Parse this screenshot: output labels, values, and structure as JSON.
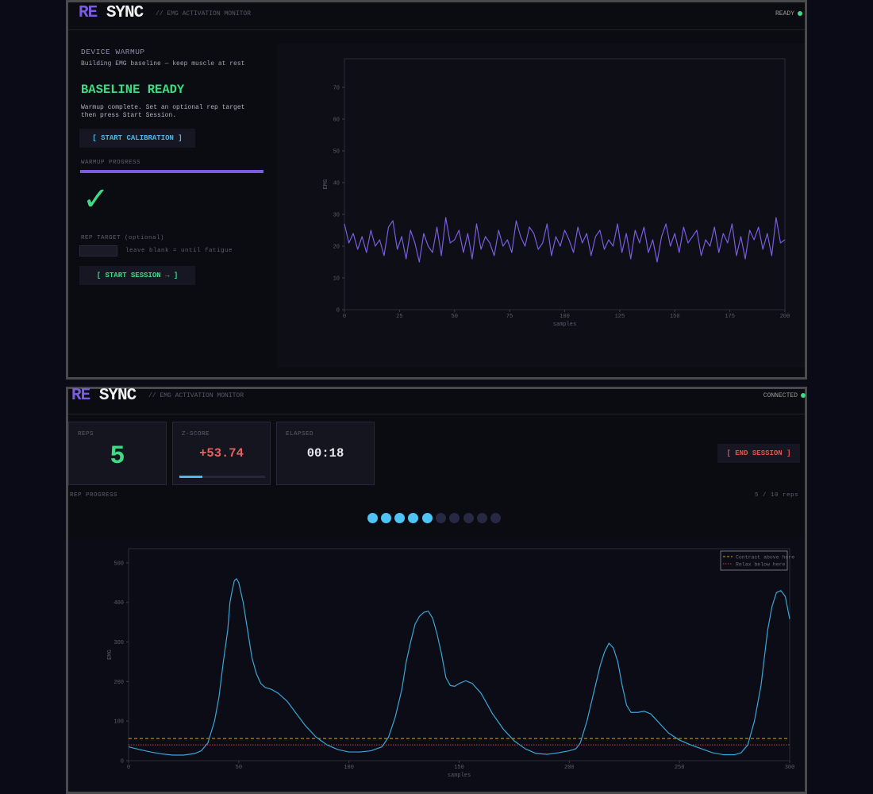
{
  "warmup_screen": {
    "logo_re": "RE",
    "logo_sync": "SYNC",
    "subtitle": "// EMG ACTIVATION MONITOR",
    "status": "READY",
    "section_title": "DEVICE WARMUP",
    "section_hint": "Building EMG baseline — keep muscle at rest",
    "state_title": "BASELINE READY",
    "state_text": "Warmup complete. Set an optional rep target then press Start Session.",
    "calibrate_button": "[ START CALIBRATION ]",
    "progress_label": "WARMUP PROGRESS",
    "check_mark": "✓",
    "rep_target_label": "REP TARGET",
    "rep_target_optional": "(optional)",
    "rep_target_hint": "leave blank = until fatigue",
    "start_button": "[ START SESSION → ]"
  },
  "session_screen": {
    "logo_re": "RE",
    "logo_sync": "SYNC",
    "subtitle": "// EMG ACTIVATION MONITOR",
    "status": "CONNECTED",
    "reps_label": "REPS",
    "reps_value": "5",
    "zscore_label": "Z-SCORE",
    "zscore_value": "+53.74",
    "elapsed_label": "ELAPSED",
    "elapsed_value": "00:18",
    "end_button": "[ END SESSION ]",
    "rep_progress_label": "REP PROGRESS",
    "rep_progress_count": "5 / 10 reps"
  },
  "chart_data": [
    {
      "type": "line",
      "color": "#7b5ce0",
      "xlabel": "samples",
      "ylabel": "EMG",
      "xlim": [
        0,
        200
      ],
      "ylim": [
        0,
        79
      ],
      "xticks": [
        0,
        25,
        50,
        75,
        100,
        125,
        150,
        175,
        200
      ],
      "yticks": [
        0,
        10,
        20,
        30,
        40,
        50,
        60,
        70
      ],
      "x": [
        0,
        2,
        4,
        6,
        8,
        10,
        12,
        14,
        16,
        18,
        20,
        22,
        24,
        26,
        28,
        30,
        32,
        34,
        36,
        38,
        40,
        42,
        44,
        46,
        48,
        50,
        52,
        54,
        56,
        58,
        60,
        62,
        64,
        66,
        68,
        70,
        72,
        74,
        76,
        78,
        80,
        82,
        84,
        86,
        88,
        90,
        92,
        94,
        96,
        98,
        100,
        102,
        104,
        106,
        108,
        110,
        112,
        114,
        116,
        118,
        120,
        122,
        124,
        126,
        128,
        130,
        132,
        134,
        136,
        138,
        140,
        142,
        144,
        146,
        148,
        150,
        152,
        154,
        156,
        158,
        160,
        162,
        164,
        166,
        168,
        170,
        172,
        174,
        176,
        178,
        180,
        182,
        184,
        186,
        188,
        190,
        192,
        194,
        196,
        198,
        200
      ],
      "values": [
        27,
        21,
        24,
        19,
        23,
        18,
        25,
        20,
        22,
        17,
        26,
        28,
        19,
        23,
        16,
        25,
        21,
        15,
        24,
        20,
        18,
        26,
        17,
        29,
        21,
        22,
        25,
        18,
        24,
        16,
        27,
        19,
        23,
        21,
        17,
        25,
        20,
        22,
        18,
        28,
        23,
        20,
        26,
        24,
        19,
        21,
        27,
        17,
        23,
        20,
        25,
        22,
        18,
        26,
        21,
        24,
        17,
        23,
        25,
        19,
        22,
        20,
        27,
        18,
        24,
        16,
        25,
        21,
        26,
        18,
        22,
        15,
        23,
        27,
        20,
        24,
        18,
        26,
        21,
        23,
        25,
        17,
        22,
        20,
        26,
        18,
        24,
        21,
        27,
        17,
        23,
        16,
        25,
        22,
        26,
        19,
        24,
        17,
        29,
        21,
        22
      ]
    },
    {
      "type": "line",
      "color": "#3aa6d6",
      "xlabel": "samples",
      "ylabel": "EMG",
      "xlim": [
        0,
        300
      ],
      "ylim": [
        0,
        536
      ],
      "xticks": [
        0,
        50,
        100,
        150,
        200,
        250,
        300
      ],
      "yticks": [
        0,
        100,
        200,
        300,
        400,
        500
      ],
      "legend": "upper right",
      "thresholds": [
        {
          "name": "Contract above here",
          "value": 56,
          "color": "#e0a020",
          "style": "dashed"
        },
        {
          "name": "Relax below here",
          "value": 40,
          "color": "#d04040",
          "style": "dotted"
        }
      ],
      "x": [
        0,
        5,
        10,
        15,
        20,
        25,
        30,
        33,
        36,
        39,
        41,
        43,
        45,
        46,
        47,
        48,
        49,
        50,
        52,
        54,
        56,
        58,
        60,
        62,
        65,
        68,
        72,
        76,
        80,
        85,
        90,
        95,
        100,
        105,
        110,
        115,
        118,
        121,
        124,
        126,
        128,
        130,
        132,
        134,
        136,
        138,
        140,
        142,
        144,
        146,
        148,
        150,
        153,
        156,
        160,
        165,
        170,
        175,
        180,
        185,
        190,
        195,
        200,
        203,
        205,
        208,
        211,
        214,
        216,
        218,
        220,
        222,
        224,
        226,
        228,
        231,
        234,
        237,
        240,
        245,
        250,
        255,
        260,
        265,
        270,
        275,
        278,
        281,
        284,
        287,
        290,
        292,
        294,
        296,
        298,
        300
      ],
      "values": [
        35,
        28,
        22,
        17,
        14,
        14,
        18,
        25,
        45,
        100,
        160,
        250,
        330,
        400,
        430,
        455,
        460,
        450,
        400,
        330,
        260,
        220,
        195,
        185,
        180,
        170,
        150,
        120,
        90,
        60,
        40,
        28,
        22,
        22,
        25,
        35,
        60,
        110,
        180,
        250,
        300,
        345,
        365,
        375,
        378,
        360,
        320,
        270,
        210,
        190,
        188,
        195,
        202,
        195,
        170,
        120,
        80,
        50,
        30,
        18,
        16,
        20,
        25,
        30,
        45,
        100,
        170,
        240,
        275,
        297,
        285,
        250,
        190,
        140,
        122,
        122,
        125,
        118,
        100,
        70,
        52,
        40,
        30,
        20,
        15,
        15,
        20,
        40,
        100,
        190,
        330,
        390,
        425,
        430,
        415,
        358
      ]
    }
  ]
}
